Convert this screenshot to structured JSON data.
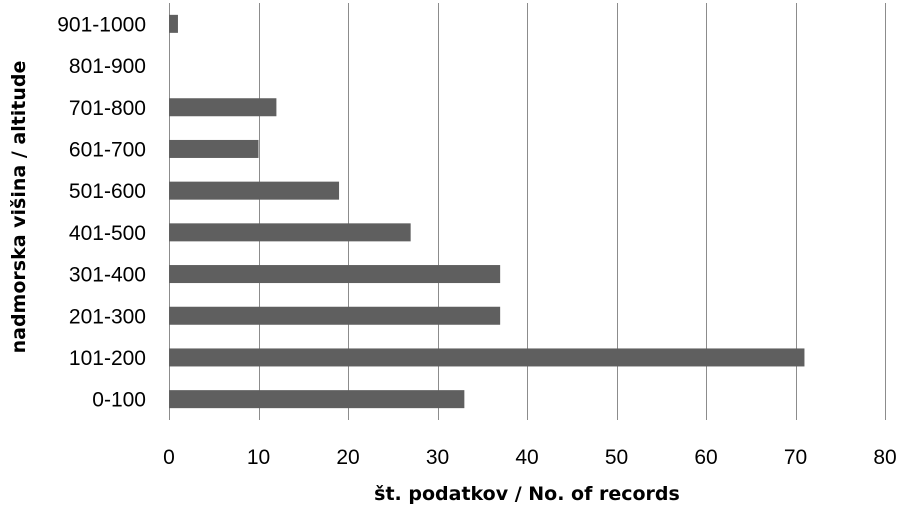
{
  "chart_data": {
    "type": "bar",
    "orientation": "horizontal",
    "categories": [
      "0-100",
      "101-200",
      "201-300",
      "301-400",
      "401-500",
      "501-600",
      "601-700",
      "701-800",
      "801-900",
      "901-1000"
    ],
    "values": [
      33,
      71,
      37,
      37,
      27,
      19,
      10,
      12,
      0,
      1
    ],
    "title": "",
    "xlabel": "št. podatkov / No. of records",
    "ylabel": "nadmorska višina / altitude",
    "xlim": [
      0,
      80
    ],
    "x_ticks": [
      0,
      10,
      20,
      30,
      40,
      50,
      60,
      70,
      80
    ],
    "grid": "vertical",
    "legend": "none",
    "bar_color": "#5f5f5f",
    "grid_color": "#8c8c8c"
  }
}
